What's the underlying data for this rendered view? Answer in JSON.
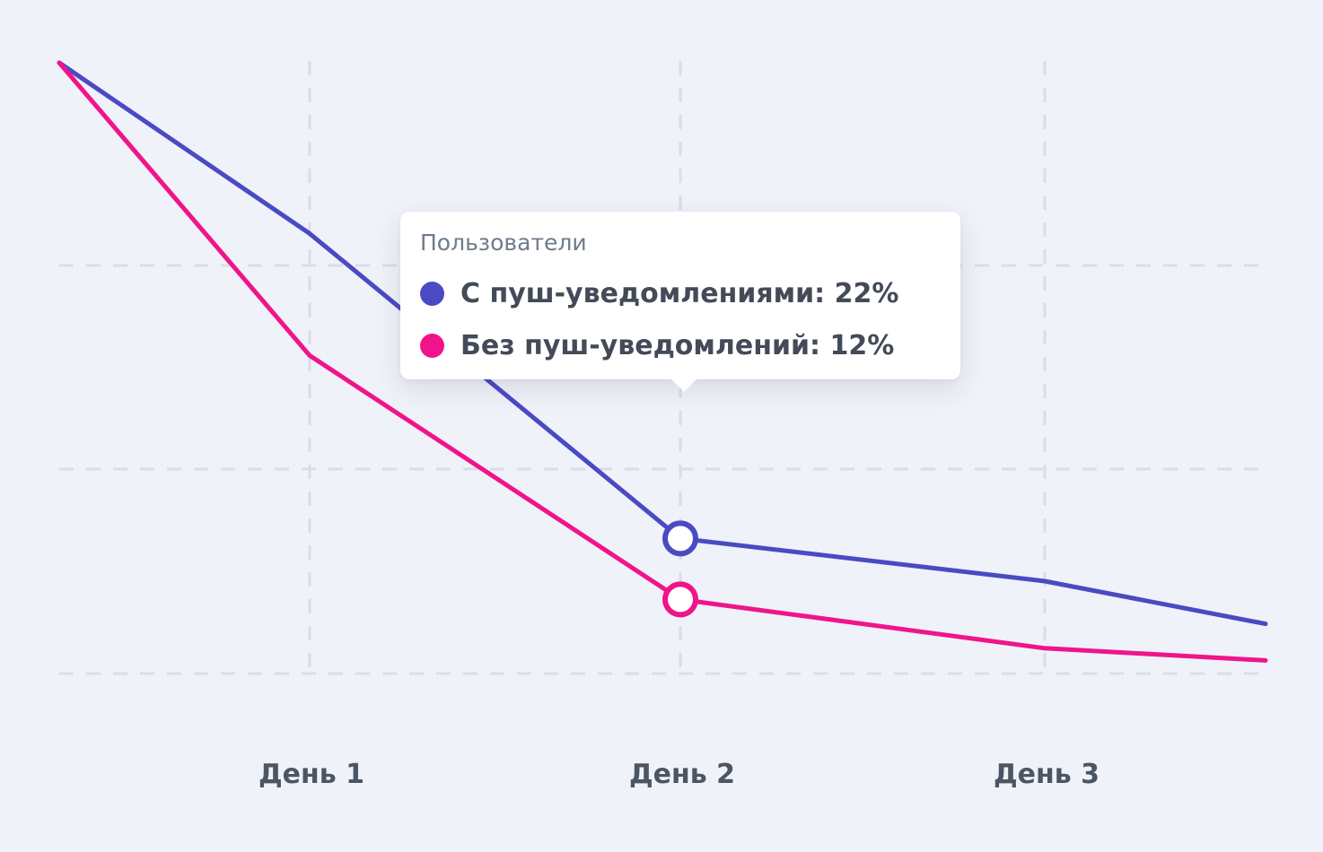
{
  "chart_data": {
    "type": "line",
    "categories": [
      "",
      "День 1",
      "День 2",
      "День 3",
      ""
    ],
    "series": [
      {
        "name": "С пуш-уведомлениями",
        "values": [
          100,
          72,
          22,
          15,
          8
        ],
        "color": "#4a4ac4"
      },
      {
        "name": "Без пуш-уведомлений",
        "values": [
          100,
          52,
          12,
          4,
          2
        ],
        "color": "#f0148b"
      }
    ],
    "grid": true,
    "ylim": [
      0,
      100
    ],
    "highlight_category": "День 2"
  },
  "tooltip": {
    "title": "Пользователи",
    "rows": [
      {
        "label": "С пуш-уведомлениями: 22%",
        "color": "#4a4ac4"
      },
      {
        "label": "Без пуш-уведомлений: 12%",
        "color": "#f0148b"
      }
    ]
  }
}
